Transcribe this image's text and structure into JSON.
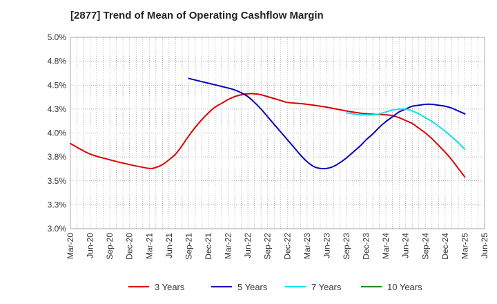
{
  "chart_data": {
    "type": "line",
    "title": "[2877]  Trend of Mean of Operating Cashflow Margin",
    "xlabel": "",
    "ylabel": "",
    "ylim": [
      3.0,
      5.0
    ],
    "y_ticks": [
      "3.0%",
      "3.3%",
      "3.5%",
      "3.8%",
      "4.0%",
      "4.3%",
      "4.5%",
      "4.8%",
      "5.0%"
    ],
    "x_ticks": [
      "Mar-20",
      "Jun-20",
      "Sep-20",
      "Dec-20",
      "Mar-21",
      "Jun-21",
      "Sep-21",
      "Dec-21",
      "Mar-22",
      "Jun-22",
      "Sep-22",
      "Dec-22",
      "Mar-23",
      "Jun-23",
      "Sep-23",
      "Dec-23",
      "Mar-24",
      "Jun-24",
      "Sep-24",
      "Dec-24",
      "Mar-25",
      "Jun-25"
    ],
    "grid": true,
    "legend_position": "bottom",
    "series": [
      {
        "name": "3 Years",
        "color": "#dd0000",
        "x": [
          "2020-03",
          "2020-06",
          "2020-09",
          "2020-12",
          "2021-03",
          "2021-04",
          "2021-05",
          "2021-06",
          "2021-07",
          "2021-08",
          "2021-09",
          "2021-10",
          "2021-11",
          "2021-12",
          "2022-01",
          "2022-02",
          "2022-03",
          "2022-04",
          "2022-05",
          "2022-06",
          "2022-07",
          "2022-08",
          "2022-09",
          "2022-10",
          "2022-11",
          "2022-12",
          "2023-03",
          "2023-06",
          "2023-09",
          "2023-12",
          "2024-03",
          "2024-04",
          "2024-05",
          "2024-06",
          "2024-07",
          "2024-08",
          "2024-09",
          "2024-10",
          "2024-11",
          "2024-12",
          "2025-01",
          "2025-02",
          "2025-03"
        ],
        "values": [
          3.89,
          3.78,
          3.72,
          3.67,
          3.63,
          3.64,
          3.67,
          3.72,
          3.78,
          3.87,
          3.97,
          4.06,
          4.14,
          4.21,
          4.27,
          4.31,
          4.35,
          4.38,
          4.4,
          4.41,
          4.41,
          4.4,
          4.38,
          4.36,
          4.34,
          4.32,
          4.3,
          4.27,
          4.23,
          4.2,
          4.19,
          4.18,
          4.16,
          4.13,
          4.1,
          4.05,
          4.0,
          3.94,
          3.87,
          3.8,
          3.72,
          3.63,
          3.54
        ]
      },
      {
        "name": "5 Years",
        "color": "#0000bb",
        "x": [
          "2021-09",
          "2021-12",
          "2022-03",
          "2022-04",
          "2022-05",
          "2022-06",
          "2022-07",
          "2022-08",
          "2022-09",
          "2022-10",
          "2022-11",
          "2022-12",
          "2023-01",
          "2023-02",
          "2023-03",
          "2023-04",
          "2023-05",
          "2023-06",
          "2023-07",
          "2023-08",
          "2023-09",
          "2023-10",
          "2023-11",
          "2023-12",
          "2024-01",
          "2024-02",
          "2024-03",
          "2024-04",
          "2024-05",
          "2024-06",
          "2024-07",
          "2024-08",
          "2024-09",
          "2024-10",
          "2024-11",
          "2024-12",
          "2025-01",
          "2025-02",
          "2025-03"
        ],
        "values": [
          4.57,
          4.52,
          4.47,
          4.45,
          4.42,
          4.38,
          4.32,
          4.25,
          4.17,
          4.09,
          4.01,
          3.93,
          3.85,
          3.77,
          3.7,
          3.65,
          3.63,
          3.63,
          3.65,
          3.69,
          3.74,
          3.8,
          3.86,
          3.93,
          3.99,
          4.06,
          4.12,
          4.17,
          4.22,
          4.25,
          4.28,
          4.29,
          4.3,
          4.3,
          4.29,
          4.28,
          4.26,
          4.23,
          4.2
        ]
      },
      {
        "name": "7 Years",
        "color": "#00e5ee",
        "x": [
          "2023-09",
          "2023-10",
          "2023-11",
          "2023-12",
          "2024-01",
          "2024-02",
          "2024-03",
          "2024-04",
          "2024-05",
          "2024-06",
          "2024-07",
          "2024-08",
          "2024-09",
          "2024-10",
          "2024-11",
          "2024-12",
          "2025-01",
          "2025-02",
          "2025-03"
        ],
        "values": [
          4.21,
          4.2,
          4.19,
          4.19,
          4.19,
          4.2,
          4.22,
          4.24,
          4.25,
          4.25,
          4.23,
          4.2,
          4.16,
          4.12,
          4.07,
          4.02,
          3.96,
          3.9,
          3.83
        ]
      },
      {
        "name": "10 Years",
        "color": "#228b22",
        "x": [],
        "values": []
      }
    ]
  }
}
